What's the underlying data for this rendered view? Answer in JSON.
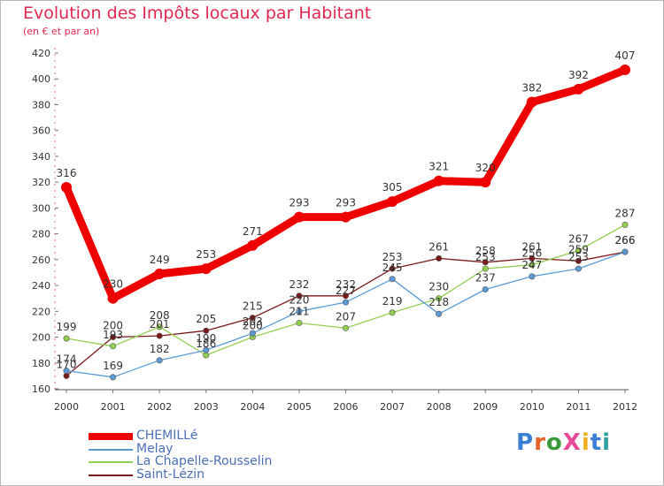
{
  "title": "Evolution des Impôts locaux par Habitant",
  "subtitle": "(en € et par an)",
  "logo": {
    "text": "ProXiti",
    "colors": [
      "#3a7fd5",
      "#e8632b",
      "#3a9a3a",
      "#e84a9a",
      "#f2b21f",
      "#3a7fd5",
      "#2aa0a0"
    ]
  },
  "chart_data": {
    "type": "line",
    "title": "Evolution des Impôts locaux par Habitant",
    "subtitle": "(en € et par an)",
    "x": [
      "2000",
      "2001",
      "2002",
      "2003",
      "2004",
      "2005",
      "2006",
      "2007",
      "2008",
      "2009",
      "2010",
      "2011",
      "2012"
    ],
    "ylim": [
      160,
      420
    ],
    "yticks": [
      160,
      180,
      200,
      220,
      240,
      260,
      280,
      300,
      320,
      340,
      360,
      380,
      400,
      420
    ],
    "grid": false,
    "legend_position": "bottom-left",
    "series": [
      {
        "name": "CHEMILLé",
        "color": "#ee0000",
        "values": [
          316,
          230,
          249,
          253,
          271,
          293,
          293,
          305,
          321,
          320,
          382,
          392,
          407
        ],
        "labels": [
          "316",
          "230",
          "249",
          "253",
          "271",
          "293",
          "293",
          "305",
          "321",
          "320",
          "382",
          "392",
          "407"
        ]
      },
      {
        "name": "Melay",
        "color": "#5b9bd5",
        "values": [
          174,
          169,
          182,
          190,
          203,
          220,
          227,
          245,
          218,
          237,
          247,
          253,
          266
        ],
        "labels": [
          "174",
          "169",
          "182",
          "190",
          "203",
          "220",
          "227",
          "245",
          "218",
          "237",
          "247",
          "253",
          "266"
        ]
      },
      {
        "name": "La Chapelle-Rousselin",
        "color": "#92d050",
        "values": [
          199,
          193,
          208,
          186,
          200,
          211,
          207,
          219,
          230,
          253,
          256,
          267,
          287
        ],
        "labels": [
          "199",
          "193",
          "208",
          "186",
          "200",
          "211",
          "207",
          "219",
          "230",
          "253",
          "256",
          "267",
          "287"
        ]
      },
      {
        "name": "Saint-Lézin",
        "color": "#7b1a1a",
        "values": [
          170,
          200,
          201,
          205,
          215,
          232,
          232,
          253,
          261,
          258,
          261,
          259,
          266
        ],
        "labels": [
          "170",
          "200",
          "201",
          "205",
          "215",
          "232",
          "232",
          "253",
          "261",
          "258",
          "261",
          "259",
          "266"
        ]
      }
    ]
  }
}
